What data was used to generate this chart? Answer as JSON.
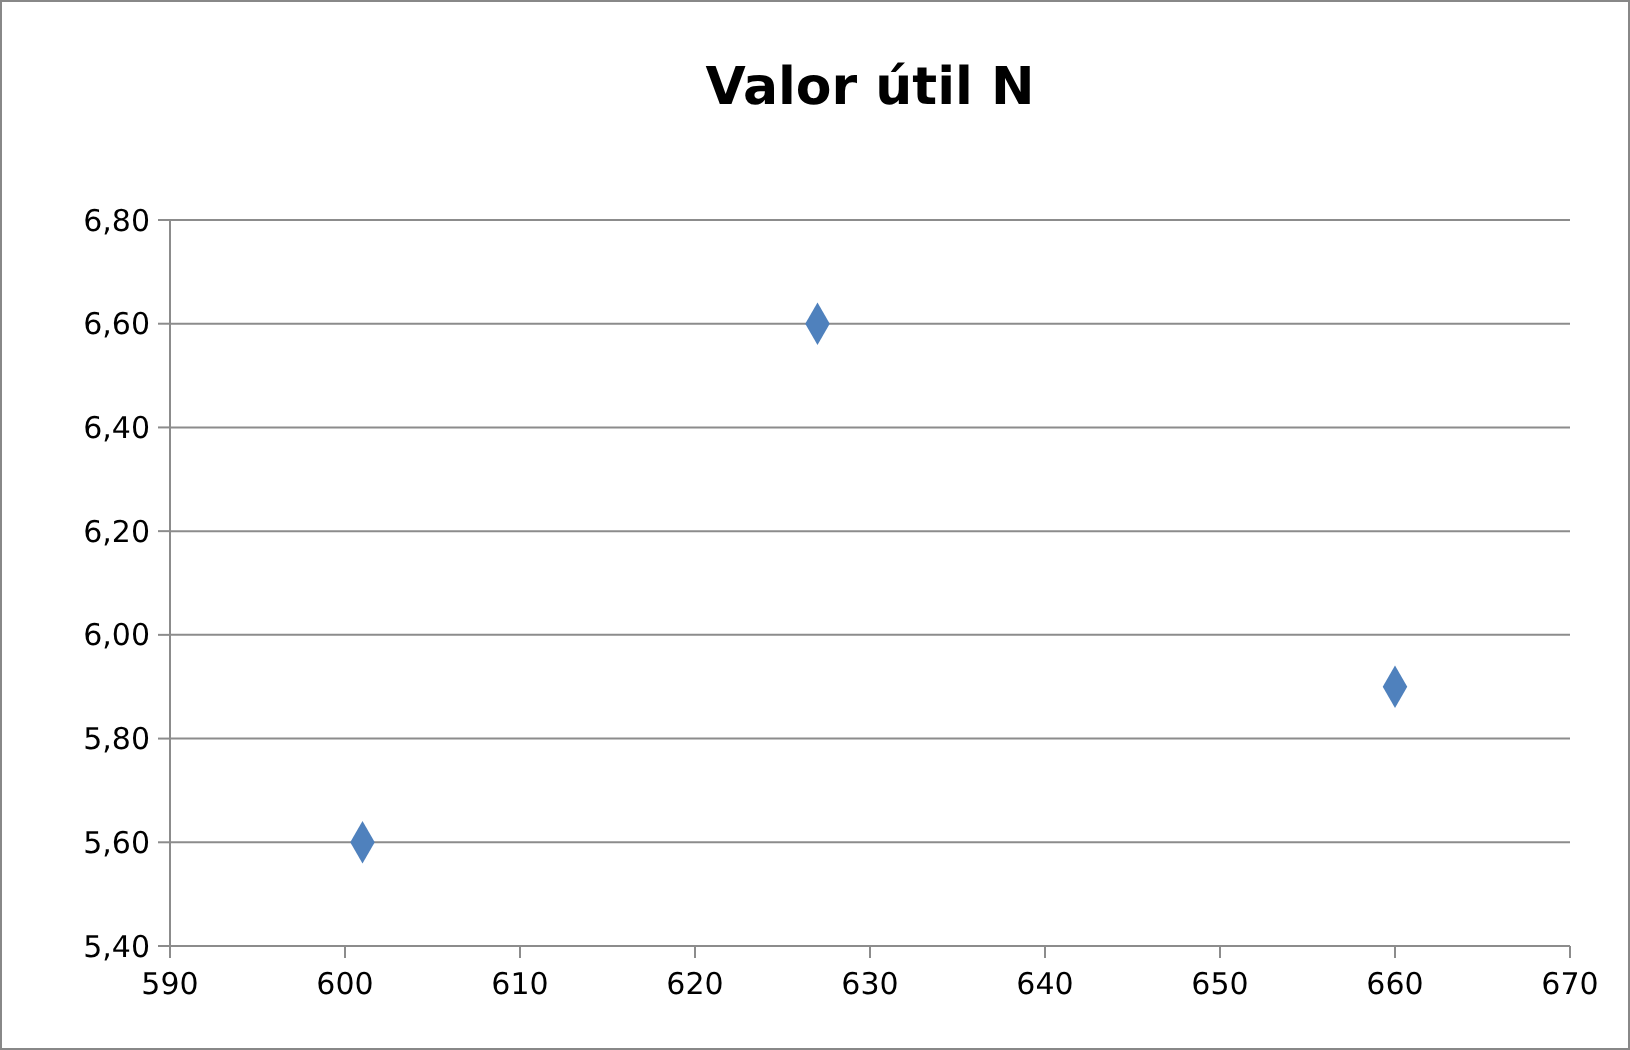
{
  "chart_data": {
    "type": "scatter",
    "title": "Valor útil N",
    "x": [
      601,
      627,
      660
    ],
    "series": [
      {
        "color": "#4f81bd",
        "values": [
          5.6,
          6.6,
          5.9
        ]
      }
    ],
    "marker": "diamond",
    "xlim": [
      590,
      670
    ],
    "xticks": [
      590,
      600,
      610,
      620,
      630,
      640,
      650,
      660,
      670
    ],
    "ylim": [
      5.4,
      6.8
    ],
    "yticks": [
      {
        "value": 5.4,
        "label": "5,40"
      },
      {
        "value": 5.6,
        "label": "5,60"
      },
      {
        "value": 5.8,
        "label": "5,80"
      },
      {
        "value": 6.0,
        "label": "6,00"
      },
      {
        "value": 6.2,
        "label": "6,20"
      },
      {
        "value": 6.4,
        "label": "6,40"
      },
      {
        "value": 6.6,
        "label": "6,60"
      },
      {
        "value": 6.8,
        "label": "6,80"
      }
    ],
    "grid": "y"
  }
}
